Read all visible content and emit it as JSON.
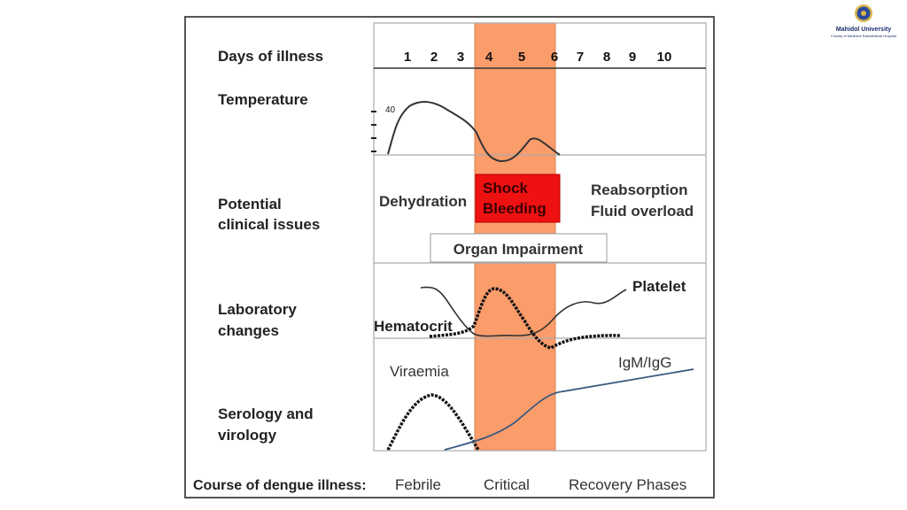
{
  "logo": {
    "name": "Mahidol University",
    "subtitle": "Faculty of Medicine Ramathibodi Hospital"
  },
  "rows": {
    "days": "Days of illness",
    "temperature": "Temperature",
    "clinical_1": "Potential",
    "clinical_2": "clinical issues",
    "lab_1": "Laboratory",
    "lab_2": "changes",
    "sero_1": "Serology and",
    "sero_2": "virology"
  },
  "days": [
    "1",
    "2",
    "3",
    "4",
    "5",
    "6",
    "7",
    "8",
    "9",
    "10"
  ],
  "temperature_tick": "40",
  "clinical": {
    "dehydration": "Dehydration",
    "shock": "Shock",
    "bleeding": "Bleeding",
    "reabsorption": "Reabsorption",
    "fluid_overload": "Fluid overload",
    "organ": "Organ Impairment"
  },
  "lab": {
    "platelet": "Platelet",
    "hematocrit": "Hematocrit"
  },
  "serology": {
    "viraemia": "Viraemia",
    "igm": "IgM/IgG"
  },
  "course": {
    "label": "Course of dengue illness:",
    "phases": [
      "Febrile",
      "Critical",
      "Recovery Phases"
    ]
  },
  "colors": {
    "critical_band": "#fb9c6b",
    "shock_box": "#ee1111",
    "igm_line": "#3a5a80"
  }
}
